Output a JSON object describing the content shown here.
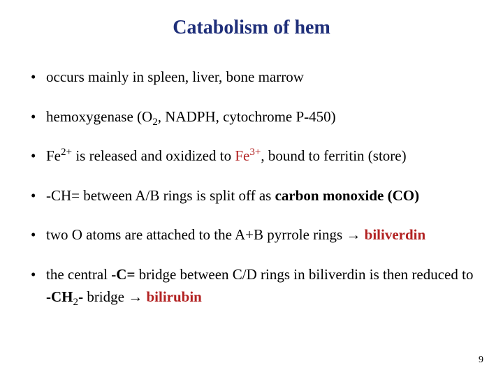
{
  "title": {
    "text": "Catabolism of hem",
    "color": "#1f2f7a",
    "fontsize": 28
  },
  "body": {
    "fontsize": 21,
    "color": "#000000"
  },
  "accent_color": "#b22222",
  "arrow": "→",
  "bullets": [
    {
      "plain": "occurs mainly in spleen, liver, bone marrow"
    },
    {
      "pre": "hemoxygenase (O",
      "sub1": "2",
      "post": ", NADPH, cytochrome P-450)"
    },
    {
      "a": "Fe",
      "sup_a": "2+",
      "b": " is released and oxidized to ",
      "c": "Fe",
      "sup_c": "3+",
      "d": ", bound to ferritin (store)"
    },
    {
      "a": "-CH= between A/B rings is split off as ",
      "strong": "carbon monoxide (CO)"
    },
    {
      "a": "two O atoms are attached to the A+B pyrrole rings ",
      "arrow": "→",
      "strong": " biliverdin"
    },
    {
      "a": "the central ",
      "b": "-C=",
      "c": "  bridge between C/D rings in biliverdin is then reduced to ",
      "d_pre": "-CH",
      "d_sub": "2",
      "d_post": "-",
      "e": " bridge  ",
      "arrow": "→",
      "strong": "  bilirubin"
    }
  ],
  "page_number": "9"
}
